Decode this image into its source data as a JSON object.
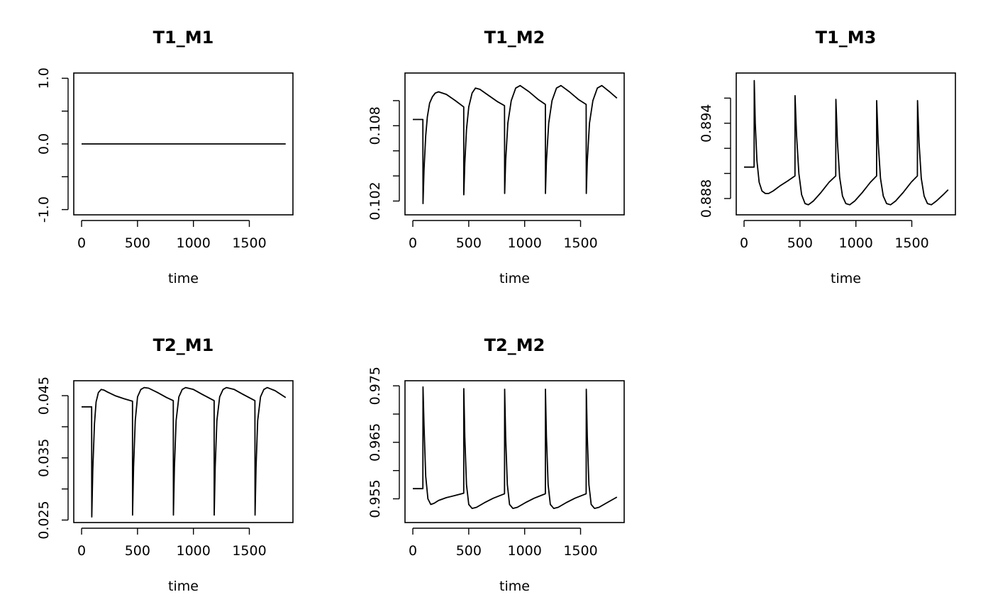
{
  "chart_data": [
    {
      "type": "line",
      "title": "T1_M1",
      "xlabel": "time",
      "ylabel": "",
      "xlim": [
        -70,
        1890
      ],
      "ylim": [
        -1.08,
        1.08
      ],
      "xticks": [
        "0",
        "500",
        "1000",
        "1500"
      ],
      "yticks": [
        "-1.0",
        "0.0",
        "1.0"
      ],
      "series": [
        {
          "x": [
            0,
            1825
          ],
          "y": [
            0,
            0
          ]
        }
      ]
    },
    {
      "type": "line",
      "title": "T1_M2",
      "xlabel": "time",
      "ylabel": "",
      "xlim": [
        -70,
        1890
      ],
      "ylim": [
        0.1009,
        0.1122
      ],
      "xticks": [
        "0",
        "500",
        "1000",
        "1500"
      ],
      "yticks": [
        "0.102",
        "0.108"
      ],
      "series": [
        {
          "x": [
            0,
            90,
            91,
            100,
            115,
            130,
            150,
            175,
            200,
            230,
            300,
            380,
            455,
            456,
            465,
            480,
            500,
            530,
            560,
            600,
            680,
            760,
            820,
            821,
            830,
            850,
            880,
            920,
            960,
            1040,
            1120,
            1185,
            1186,
            1195,
            1215,
            1245,
            1285,
            1325,
            1400,
            1480,
            1550,
            1551,
            1560,
            1580,
            1610,
            1650,
            1690,
            1760,
            1825
          ],
          "y": [
            0.1085,
            0.1085,
            0.1018,
            0.1045,
            0.1072,
            0.1087,
            0.1098,
            0.1103,
            0.1106,
            0.1107,
            0.1105,
            0.11,
            0.1095,
            0.1025,
            0.105,
            0.1077,
            0.1095,
            0.1106,
            0.111,
            0.1109,
            0.1104,
            0.1099,
            0.1096,
            0.1026,
            0.1052,
            0.1082,
            0.11,
            0.111,
            0.1112,
            0.1107,
            0.1101,
            0.1097,
            0.1026,
            0.1052,
            0.1082,
            0.11,
            0.111,
            0.1112,
            0.1107,
            0.1101,
            0.1097,
            0.1026,
            0.1052,
            0.1082,
            0.11,
            0.111,
            0.1112,
            0.1107,
            0.1102
          ]
        }
      ]
    },
    {
      "type": "line",
      "title": "T1_M3",
      "xlabel": "time",
      "ylabel": "",
      "xlim": [
        -70,
        1890
      ],
      "ylim": [
        0.8867,
        0.898
      ],
      "xticks": [
        "0",
        "500",
        "1000",
        "1500"
      ],
      "yticks": [
        "0.888",
        "0.894"
      ],
      "series": [
        {
          "x": [
            0,
            90,
            91,
            100,
            115,
            135,
            160,
            190,
            220,
            260,
            320,
            390,
            455,
            456,
            470,
            490,
            515,
            545,
            575,
            620,
            690,
            760,
            820,
            821,
            835,
            855,
            880,
            910,
            945,
            990,
            1060,
            1130,
            1185,
            1186,
            1200,
            1220,
            1245,
            1275,
            1310,
            1355,
            1425,
            1495,
            1550,
            1551,
            1565,
            1585,
            1610,
            1640,
            1675,
            1720,
            1780,
            1825
          ],
          "y": [
            0.8905,
            0.8905,
            0.8974,
            0.894,
            0.891,
            0.8893,
            0.8886,
            0.8884,
            0.8884,
            0.8886,
            0.889,
            0.8894,
            0.8898,
            0.8962,
            0.893,
            0.89,
            0.8883,
            0.8876,
            0.8875,
            0.8878,
            0.8885,
            0.8893,
            0.8898,
            0.8959,
            0.8925,
            0.8897,
            0.8882,
            0.8876,
            0.8875,
            0.8878,
            0.8885,
            0.8893,
            0.8898,
            0.8958,
            0.8924,
            0.8896,
            0.8882,
            0.8876,
            0.8875,
            0.8878,
            0.8885,
            0.8893,
            0.8898,
            0.8958,
            0.8924,
            0.8896,
            0.8882,
            0.8876,
            0.8875,
            0.8878,
            0.8883,
            0.8887
          ]
        }
      ]
    },
    {
      "type": "line",
      "title": "T2_M1",
      "xlabel": "time",
      "ylabel": "",
      "xlim": [
        -70,
        1890
      ],
      "ylim": [
        0.0246,
        0.0474
      ],
      "xticks": [
        "0",
        "500",
        "1000",
        "1500"
      ],
      "yticks": [
        "0.025",
        "0.035",
        "0.045"
      ],
      "series": [
        {
          "x": [
            0,
            90,
            91,
            100,
            115,
            130,
            150,
            175,
            200,
            230,
            300,
            380,
            455,
            456,
            465,
            480,
            500,
            530,
            560,
            600,
            680,
            760,
            820,
            821,
            830,
            845,
            870,
            900,
            930,
            1000,
            1080,
            1185,
            1186,
            1195,
            1210,
            1235,
            1265,
            1295,
            1365,
            1445,
            1550,
            1551,
            1560,
            1575,
            1600,
            1630,
            1660,
            1730,
            1825
          ],
          "y": [
            0.0432,
            0.0432,
            0.0255,
            0.033,
            0.0405,
            0.044,
            0.0455,
            0.046,
            0.0459,
            0.0456,
            0.045,
            0.0445,
            0.0441,
            0.0258,
            0.0335,
            0.041,
            0.0448,
            0.046,
            0.0463,
            0.0462,
            0.0455,
            0.0447,
            0.0442,
            0.0258,
            0.0335,
            0.041,
            0.0448,
            0.046,
            0.0463,
            0.046,
            0.0452,
            0.0442,
            0.0258,
            0.0335,
            0.041,
            0.0448,
            0.046,
            0.0463,
            0.046,
            0.0452,
            0.0442,
            0.0258,
            0.0335,
            0.041,
            0.0448,
            0.046,
            0.0463,
            0.0458,
            0.0447
          ]
        }
      ]
    },
    {
      "type": "line",
      "title": "T2_M2",
      "xlabel": "time",
      "ylabel": "",
      "xlim": [
        -70,
        1890
      ],
      "ylim": [
        0.9508,
        0.9759
      ],
      "xticks": [
        "0",
        "500",
        "1000",
        "1500"
      ],
      "yticks": [
        "0.955",
        "0.965",
        "0.975"
      ],
      "series": [
        {
          "x": [
            0,
            90,
            91,
            100,
            115,
            135,
            160,
            190,
            230,
            300,
            380,
            455,
            456,
            465,
            480,
            500,
            530,
            570,
            640,
            720,
            820,
            821,
            830,
            845,
            865,
            895,
            935,
            1005,
            1085,
            1185,
            1186,
            1195,
            1210,
            1230,
            1260,
            1300,
            1370,
            1450,
            1550,
            1551,
            1560,
            1575,
            1595,
            1625,
            1665,
            1735,
            1825
          ],
          "y": [
            0.9568,
            0.9568,
            0.9748,
            0.968,
            0.959,
            0.955,
            0.954,
            0.9542,
            0.9547,
            0.9552,
            0.9556,
            0.956,
            0.9745,
            0.966,
            0.9575,
            0.954,
            0.9533,
            0.9535,
            0.9543,
            0.9551,
            0.9559,
            0.9744,
            0.966,
            0.9575,
            0.954,
            0.9533,
            0.9535,
            0.9543,
            0.9551,
            0.9559,
            0.9744,
            0.966,
            0.9575,
            0.954,
            0.9533,
            0.9535,
            0.9543,
            0.9551,
            0.9559,
            0.9744,
            0.966,
            0.9575,
            0.954,
            0.9533,
            0.9535,
            0.9543,
            0.9553
          ]
        }
      ]
    }
  ]
}
